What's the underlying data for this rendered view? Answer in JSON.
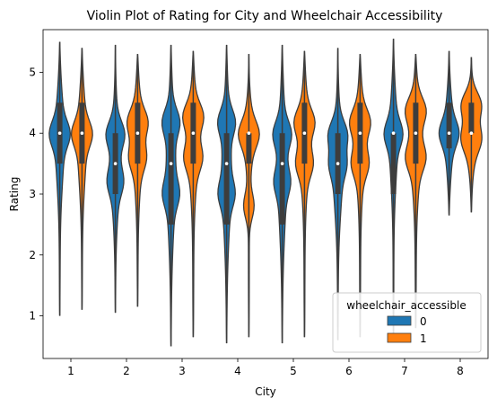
{
  "chart_data": {
    "type": "violin",
    "title": "Violin Plot of Rating for City and Wheelchair Accessibility",
    "xlabel": "City",
    "ylabel": "Rating",
    "categories": [
      "1",
      "2",
      "3",
      "4",
      "5",
      "6",
      "7",
      "8"
    ],
    "yticks": [
      "1",
      "2",
      "3",
      "4",
      "5"
    ],
    "ylim": [
      0.3,
      5.7
    ],
    "legend": {
      "title": "wheelchair_accessible",
      "placement": "lower-right",
      "entries": [
        {
          "label": "0",
          "color": "#1f77b4"
        },
        {
          "label": "1",
          "color": "#ff7f0e"
        }
      ]
    },
    "series": [
      {
        "name": "0",
        "color": "#1f77b4",
        "violins": [
          {
            "min": 1.0,
            "max": 5.5,
            "q1": 3.5,
            "median": 4.0,
            "q3": 4.5,
            "modes": [
              4.0
            ],
            "width": 1.0
          },
          {
            "min": 1.05,
            "max": 5.45,
            "q1": 3.0,
            "median": 3.5,
            "q3": 4.0,
            "modes": [
              4.0,
              3.2
            ],
            "width": 0.9
          },
          {
            "min": 0.5,
            "max": 5.45,
            "q1": 2.5,
            "median": 3.5,
            "q3": 4.0,
            "modes": [
              4.2,
              3.0
            ],
            "width": 0.85
          },
          {
            "min": 0.55,
            "max": 5.45,
            "q1": 2.5,
            "median": 3.5,
            "q3": 4.0,
            "modes": [
              4.2,
              3.0
            ],
            "width": 0.85
          },
          {
            "min": 0.55,
            "max": 5.45,
            "q1": 2.5,
            "median": 3.5,
            "q3": 4.0,
            "modes": [
              4.0,
              3.2
            ],
            "width": 0.9
          },
          {
            "min": 0.6,
            "max": 5.4,
            "q1": 3.0,
            "median": 3.5,
            "q3": 4.0,
            "modes": [
              4.0,
              3.5
            ],
            "width": 0.95
          },
          {
            "min": 0.6,
            "max": 5.55,
            "q1": 3.0,
            "median": 4.0,
            "q3": 4.0,
            "modes": [
              4.0
            ],
            "width": 0.9
          },
          {
            "min": 2.65,
            "max": 5.35,
            "q1": 3.75,
            "median": 4.0,
            "q3": 4.5,
            "modes": [
              4.0
            ],
            "width": 0.95
          }
        ]
      },
      {
        "name": "1",
        "color": "#ff7f0e",
        "violins": [
          {
            "min": 1.1,
            "max": 5.4,
            "q1": 3.5,
            "median": 4.0,
            "q3": 4.5,
            "modes": [
              4.0
            ],
            "width": 1.0
          },
          {
            "min": 1.15,
            "max": 5.3,
            "q1": 3.5,
            "median": 4.0,
            "q3": 4.5,
            "modes": [
              4.2,
              3.6
            ],
            "width": 1.0
          },
          {
            "min": 0.65,
            "max": 5.35,
            "q1": 3.5,
            "median": 4.0,
            "q3": 4.5,
            "modes": [
              4.3,
              3.6
            ],
            "width": 1.0
          },
          {
            "min": 0.65,
            "max": 5.3,
            "q1": 3.5,
            "median": 4.0,
            "q3": 4.0,
            "modes": [
              4.0,
              2.8
            ],
            "width": 1.0
          },
          {
            "min": 0.65,
            "max": 5.35,
            "q1": 3.5,
            "median": 4.0,
            "q3": 4.5,
            "modes": [
              4.2,
              3.5
            ],
            "width": 1.0
          },
          {
            "min": 0.65,
            "max": 5.3,
            "q1": 3.5,
            "median": 4.0,
            "q3": 4.5,
            "modes": [
              4.2,
              3.5
            ],
            "width": 1.0
          },
          {
            "min": 0.8,
            "max": 5.3,
            "q1": 3.5,
            "median": 4.0,
            "q3": 4.5,
            "modes": [
              4.4,
              3.6
            ],
            "width": 1.0
          },
          {
            "min": 2.7,
            "max": 5.25,
            "q1": 4.0,
            "median": 4.0,
            "q3": 4.5,
            "modes": [
              4.5,
              3.9
            ],
            "width": 1.0
          }
        ]
      }
    ]
  }
}
